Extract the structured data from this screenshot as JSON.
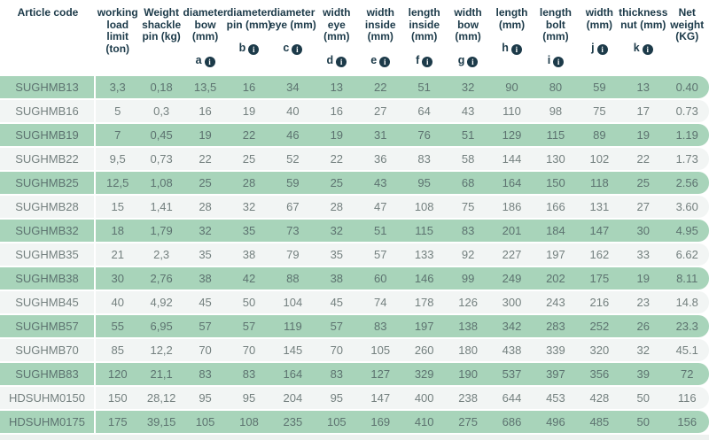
{
  "table": {
    "columns": [
      {
        "id": "article-code",
        "lines": [
          "Article code"
        ],
        "letter": ""
      },
      {
        "id": "working-load-limit",
        "lines": [
          "working",
          "load",
          "limit",
          "(ton)"
        ],
        "letter": ""
      },
      {
        "id": "weight-shackle-pin",
        "lines": [
          "Weight",
          "shackle",
          "pin (kg)"
        ],
        "letter": ""
      },
      {
        "id": "diameter-bow",
        "lines": [
          "diameter",
          "bow",
          "(mm)"
        ],
        "letter": "a"
      },
      {
        "id": "diameter-pin",
        "lines": [
          "diameter",
          "pin (mm)"
        ],
        "letter": "b"
      },
      {
        "id": "diameter-eye",
        "lines": [
          "diameter",
          "eye (mm)"
        ],
        "letter": "c"
      },
      {
        "id": "width-eye",
        "lines": [
          "width",
          "eye",
          "(mm)"
        ],
        "letter": "d"
      },
      {
        "id": "width-inside",
        "lines": [
          "width",
          "inside",
          "(mm)"
        ],
        "letter": "e"
      },
      {
        "id": "length-inside",
        "lines": [
          "length",
          "inside",
          "(mm)"
        ],
        "letter": "f"
      },
      {
        "id": "width-bow",
        "lines": [
          "width",
          "bow",
          "(mm)"
        ],
        "letter": "g"
      },
      {
        "id": "length",
        "lines": [
          "length",
          "(mm)"
        ],
        "letter": "h"
      },
      {
        "id": "length-bolt",
        "lines": [
          "length",
          "bolt",
          "(mm)"
        ],
        "letter": "i"
      },
      {
        "id": "width",
        "lines": [
          "width",
          "(mm)"
        ],
        "letter": "j"
      },
      {
        "id": "thickness-nut",
        "lines": [
          "thickness",
          "nut (mm)"
        ],
        "letter": "k"
      },
      {
        "id": "net-weight",
        "lines": [
          "Net",
          "weight",
          "(KG)"
        ],
        "letter": ""
      }
    ],
    "rows": [
      {
        "article_code": "SUGHMB13",
        "values": [
          "3,3",
          "0,18",
          "13,5",
          "16",
          "34",
          "13",
          "22",
          "51",
          "32",
          "90",
          "80",
          "59",
          "13",
          "0.40"
        ]
      },
      {
        "article_code": "SUGHMB16",
        "values": [
          "5",
          "0,3",
          "16",
          "19",
          "40",
          "16",
          "27",
          "64",
          "43",
          "110",
          "98",
          "75",
          "17",
          "0.73"
        ]
      },
      {
        "article_code": "SUGHMB19",
        "values": [
          "7",
          "0,45",
          "19",
          "22",
          "46",
          "19",
          "31",
          "76",
          "51",
          "129",
          "115",
          "89",
          "19",
          "1.19"
        ]
      },
      {
        "article_code": "SUGHMB22",
        "values": [
          "9,5",
          "0,73",
          "22",
          "25",
          "52",
          "22",
          "36",
          "83",
          "58",
          "144",
          "130",
          "102",
          "22",
          "1.73"
        ]
      },
      {
        "article_code": "SUGHMB25",
        "values": [
          "12,5",
          "1,08",
          "25",
          "28",
          "59",
          "25",
          "43",
          "95",
          "68",
          "164",
          "150",
          "118",
          "25",
          "2.56"
        ]
      },
      {
        "article_code": "SUGHMB28",
        "values": [
          "15",
          "1,41",
          "28",
          "32",
          "67",
          "28",
          "47",
          "108",
          "75",
          "186",
          "166",
          "131",
          "27",
          "3.60"
        ]
      },
      {
        "article_code": "SUGHMB32",
        "values": [
          "18",
          "1,79",
          "32",
          "35",
          "73",
          "32",
          "51",
          "115",
          "83",
          "201",
          "184",
          "147",
          "30",
          "4.95"
        ]
      },
      {
        "article_code": "SUGHMB35",
        "values": [
          "21",
          "2,3",
          "35",
          "38",
          "79",
          "35",
          "57",
          "133",
          "92",
          "227",
          "197",
          "162",
          "33",
          "6.62"
        ]
      },
      {
        "article_code": "SUGHMB38",
        "values": [
          "30",
          "2,76",
          "38",
          "42",
          "88",
          "38",
          "60",
          "146",
          "99",
          "249",
          "202",
          "175",
          "19",
          "8.11"
        ]
      },
      {
        "article_code": "SUGHMB45",
        "values": [
          "40",
          "4,92",
          "45",
          "50",
          "104",
          "45",
          "74",
          "178",
          "126",
          "300",
          "243",
          "216",
          "23",
          "14.8"
        ]
      },
      {
        "article_code": "SUGHMB57",
        "values": [
          "55",
          "6,95",
          "57",
          "57",
          "119",
          "57",
          "83",
          "197",
          "138",
          "342",
          "283",
          "252",
          "26",
          "23.3"
        ]
      },
      {
        "article_code": "SUGHMB70",
        "values": [
          "85",
          "12,2",
          "70",
          "70",
          "145",
          "70",
          "105",
          "260",
          "180",
          "438",
          "339",
          "320",
          "32",
          "45.1"
        ]
      },
      {
        "article_code": "SUGHMB83",
        "values": [
          "120",
          "21,1",
          "83",
          "83",
          "164",
          "83",
          "127",
          "329",
          "190",
          "537",
          "397",
          "356",
          "39",
          "72"
        ]
      },
      {
        "article_code": "HDSUHM0150",
        "values": [
          "150",
          "28,12",
          "95",
          "95",
          "204",
          "95",
          "147",
          "400",
          "238",
          "644",
          "453",
          "428",
          "50",
          "116"
        ]
      },
      {
        "article_code": "HDSUHM0175",
        "values": [
          "175",
          "39,15",
          "105",
          "108",
          "235",
          "105",
          "169",
          "410",
          "275",
          "686",
          "496",
          "485",
          "50",
          "156"
        ]
      }
    ]
  },
  "icons": {
    "info_glyph": "i"
  },
  "colors": {
    "row_green": "#a8d4ba",
    "row_light": "#f2f5f4",
    "header_text": "#1c3a49",
    "data_text": "#74807f",
    "data_text_on_green": "#5d7370",
    "info_icon_bg": "#1c3a49",
    "bottom_strip": "#edf1ef"
  }
}
